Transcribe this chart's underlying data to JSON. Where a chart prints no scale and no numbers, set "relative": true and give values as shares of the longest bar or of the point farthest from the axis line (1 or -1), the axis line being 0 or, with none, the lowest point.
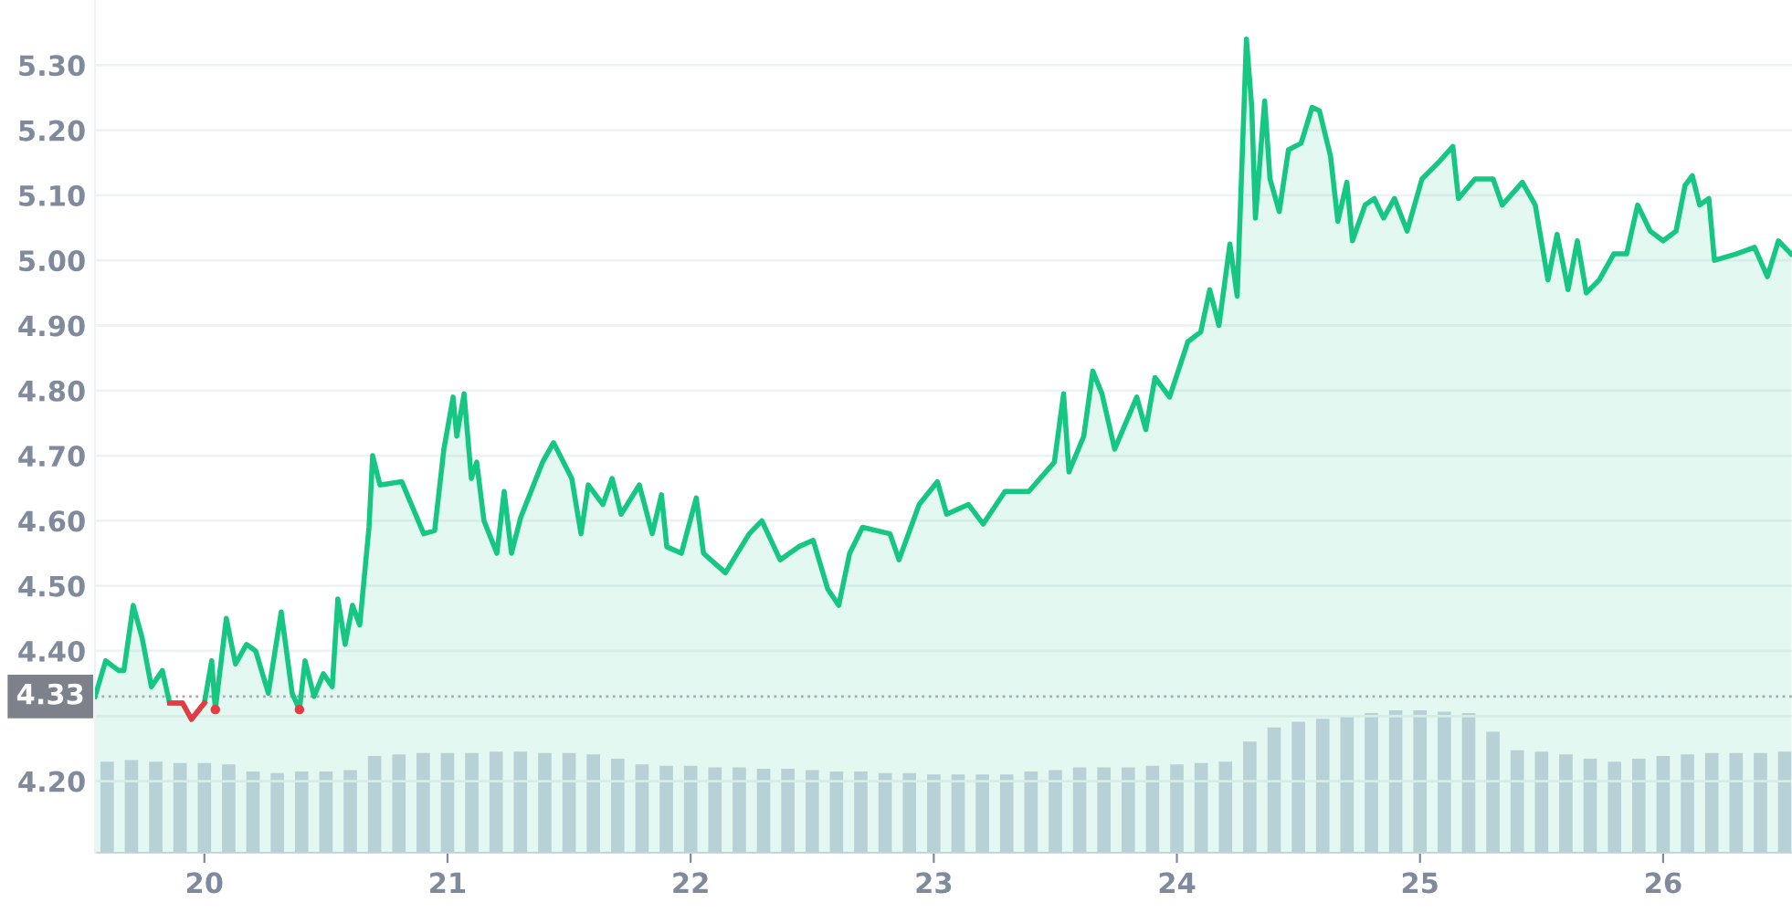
{
  "chart_data": [
    {
      "type": "area",
      "xlim": [
        19.55,
        26.53
      ],
      "ylim": [
        4.09,
        5.4
      ],
      "yticks": [
        {
          "value": 4.2,
          "label": "4.20"
        },
        {
          "value": 4.3,
          "label": null
        },
        {
          "value": 4.4,
          "label": "4.40"
        },
        {
          "value": 4.5,
          "label": "4.50"
        },
        {
          "value": 4.6,
          "label": "4.60"
        },
        {
          "value": 4.7,
          "label": "4.70"
        },
        {
          "value": 4.8,
          "label": "4.80"
        },
        {
          "value": 4.9,
          "label": "4.90"
        },
        {
          "value": 5.0,
          "label": "5.00"
        },
        {
          "value": 5.1,
          "label": "5.10"
        },
        {
          "value": 5.2,
          "label": "5.20"
        },
        {
          "value": 5.3,
          "label": "5.30"
        }
      ],
      "tick_labels": "y",
      "grid": "y",
      "ref_lines": [
        {
          "axis": "y",
          "value": 4.33,
          "label": "4.33",
          "color": "#a6abb8",
          "line_style": "dotted"
        }
      ],
      "series": [
        {
          "color": "#16c784",
          "x": [
            19.55,
            19.594,
            19.647,
            19.669,
            19.707,
            19.744,
            19.782,
            19.827,
            19.857,
            19.91,
            19.947,
            20.0,
            20.03,
            20.045,
            20.09,
            20.128,
            20.173,
            20.211,
            20.263,
            20.316,
            20.361,
            20.391,
            20.414,
            20.451,
            20.489,
            20.526,
            20.549,
            20.579,
            20.609,
            20.639,
            20.677,
            20.692,
            20.722,
            20.812,
            20.902,
            20.947,
            20.985,
            21.023,
            21.038,
            21.068,
            21.098,
            21.12,
            21.15,
            21.203,
            21.233,
            21.263,
            21.301,
            21.391,
            21.436,
            21.511,
            21.549,
            21.579,
            21.639,
            21.677,
            21.714,
            21.789,
            21.842,
            21.88,
            21.902,
            21.962,
            22.023,
            22.053,
            22.143,
            22.241,
            22.293,
            22.368,
            22.444,
            22.504,
            22.564,
            22.609,
            22.654,
            22.707,
            22.82,
            22.857,
            22.94,
            23.015,
            23.053,
            23.143,
            23.203,
            23.293,
            23.391,
            23.496,
            23.534,
            23.556,
            23.617,
            23.654,
            23.692,
            23.744,
            23.835,
            23.872,
            23.91,
            23.97,
            24.045,
            24.098,
            24.135,
            24.173,
            24.218,
            24.248,
            24.286,
            24.308,
            24.323,
            24.361,
            24.383,
            24.421,
            24.459,
            24.511,
            24.556,
            24.586,
            24.632,
            24.662,
            24.699,
            24.722,
            24.774,
            24.812,
            24.85,
            24.895,
            24.947,
            25.008,
            25.075,
            25.135,
            25.158,
            25.226,
            25.301,
            25.338,
            25.421,
            25.474,
            25.526,
            25.564,
            25.609,
            25.647,
            25.684,
            25.737,
            25.797,
            25.85,
            25.895,
            25.947,
            26.0,
            26.053,
            26.09,
            26.12,
            26.15,
            26.188,
            26.211,
            26.301,
            26.376,
            26.429,
            26.474,
            26.526
          ],
          "values": [
            4.33,
            4.385,
            4.37,
            4.37,
            4.47,
            4.42,
            4.345,
            4.37,
            4.32,
            4.32,
            4.295,
            4.32,
            4.385,
            4.31,
            4.45,
            4.38,
            4.41,
            4.4,
            4.335,
            4.46,
            4.335,
            4.31,
            4.385,
            4.33,
            4.365,
            4.345,
            4.48,
            4.41,
            4.47,
            4.44,
            4.59,
            4.7,
            4.655,
            4.66,
            4.58,
            4.585,
            4.71,
            4.79,
            4.73,
            4.795,
            4.665,
            4.69,
            4.6,
            4.55,
            4.645,
            4.55,
            4.605,
            4.69,
            4.72,
            4.665,
            4.58,
            4.655,
            4.625,
            4.665,
            4.61,
            4.655,
            4.58,
            4.64,
            4.56,
            4.55,
            4.635,
            4.55,
            4.52,
            4.58,
            4.6,
            4.54,
            4.56,
            4.57,
            4.495,
            4.47,
            4.55,
            4.59,
            4.58,
            4.54,
            4.625,
            4.66,
            4.61,
            4.625,
            4.595,
            4.645,
            4.645,
            4.69,
            4.795,
            4.675,
            4.73,
            4.83,
            4.795,
            4.71,
            4.79,
            4.74,
            4.82,
            4.79,
            4.875,
            4.89,
            4.955,
            4.9,
            5.025,
            4.945,
            5.34,
            5.235,
            5.065,
            5.245,
            5.125,
            5.075,
            5.17,
            5.18,
            5.235,
            5.23,
            5.16,
            5.06,
            5.12,
            5.03,
            5.085,
            5.095,
            5.065,
            5.095,
            5.045,
            5.125,
            5.15,
            5.175,
            5.095,
            5.125,
            5.125,
            5.085,
            5.12,
            5.085,
            4.97,
            5.04,
            4.955,
            5.03,
            4.95,
            4.97,
            5.01,
            5.01,
            5.085,
            5.045,
            5.03,
            5.045,
            5.115,
            5.13,
            5.085,
            5.095,
            5.0,
            5.01,
            5.02,
            4.975,
            5.03,
            5.01
          ]
        },
        {
          "type": "line",
          "color": "#ea3943",
          "x": [
            19.857,
            19.91,
            19.947,
            20.0
          ],
          "values": [
            4.32,
            4.32,
            4.295,
            4.32
          ]
        },
        {
          "type": "scatter",
          "color": "#ea3943",
          "x": [
            20.045,
            20.391
          ],
          "values": [
            4.31,
            4.31
          ]
        }
      ]
    },
    {
      "type": "bar",
      "relative": true,
      "color": "#cfd3e3",
      "xlim": [
        19.55,
        26.53
      ],
      "xticks": [
        {
          "value": 20,
          "label": "20"
        },
        {
          "value": 21,
          "label": "21"
        },
        {
          "value": 22,
          "label": "22"
        },
        {
          "value": 23,
          "label": "23"
        },
        {
          "value": 24,
          "label": "24"
        },
        {
          "value": 25,
          "label": "25"
        },
        {
          "value": 26,
          "label": "26"
        }
      ],
      "tick_labels": "x",
      "x": [
        19.6,
        19.7,
        19.8,
        19.9,
        20.0,
        20.1,
        20.2,
        20.3,
        20.4,
        20.5,
        20.6,
        20.7,
        20.8,
        20.9,
        21.0,
        21.1,
        21.2,
        21.3,
        21.4,
        21.5,
        21.6,
        21.7,
        21.8,
        21.9,
        22.0,
        22.1,
        22.2,
        22.3,
        22.4,
        22.5,
        22.6,
        22.7,
        22.8,
        22.9,
        23.0,
        23.1,
        23.2,
        23.3,
        23.4,
        23.5,
        23.6,
        23.7,
        23.8,
        23.9,
        24.0,
        24.1,
        24.2,
        24.3,
        24.4,
        24.5,
        24.6,
        24.7,
        24.8,
        24.9,
        25.0,
        25.1,
        25.2,
        25.3,
        25.4,
        25.5,
        25.6,
        25.7,
        25.8,
        25.9,
        26.0,
        26.1,
        26.2,
        26.3,
        26.4,
        26.5
      ],
      "values": [
        0.64,
        0.65,
        0.64,
        0.63,
        0.63,
        0.62,
        0.57,
        0.56,
        0.57,
        0.57,
        0.58,
        0.68,
        0.69,
        0.7,
        0.7,
        0.7,
        0.71,
        0.71,
        0.7,
        0.7,
        0.69,
        0.66,
        0.62,
        0.61,
        0.61,
        0.6,
        0.6,
        0.59,
        0.59,
        0.58,
        0.57,
        0.57,
        0.56,
        0.56,
        0.55,
        0.55,
        0.55,
        0.55,
        0.57,
        0.58,
        0.6,
        0.6,
        0.6,
        0.61,
        0.62,
        0.63,
        0.64,
        0.78,
        0.88,
        0.92,
        0.94,
        0.96,
        0.98,
        1.0,
        1.0,
        0.99,
        0.98,
        0.85,
        0.72,
        0.71,
        0.69,
        0.66,
        0.64,
        0.66,
        0.68,
        0.69,
        0.7,
        0.7,
        0.7,
        0.71
      ]
    }
  ]
}
